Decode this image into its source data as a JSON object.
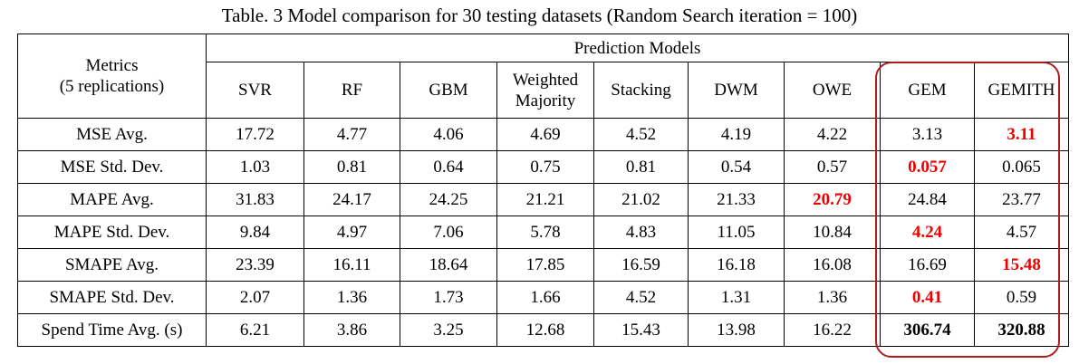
{
  "caption": "Table. 3 Model comparison for 30 testing datasets (Random Search iteration = 100)",
  "header": {
    "metrics_label_line1": "Metrics",
    "metrics_label_line2": "(5 replications)",
    "group_label": "Prediction Models",
    "models": [
      {
        "line1": "SVR",
        "line2": ""
      },
      {
        "line1": "RF",
        "line2": ""
      },
      {
        "line1": "GBM",
        "line2": ""
      },
      {
        "line1": "Weighted",
        "line2": "Majority"
      },
      {
        "line1": "Stacking",
        "line2": ""
      },
      {
        "line1": "DWM",
        "line2": ""
      },
      {
        "line1": "OWE",
        "line2": ""
      },
      {
        "line1": "GEM",
        "line2": ""
      },
      {
        "line1": "GEMITH",
        "line2": ""
      }
    ]
  },
  "rows": [
    {
      "metric": "MSE Avg.",
      "values": [
        "17.72",
        "4.77",
        "4.06",
        "4.69",
        "4.52",
        "4.19",
        "4.22",
        "3.13",
        "3.11"
      ],
      "best_index": 8,
      "bold_indices": []
    },
    {
      "metric": "MSE Std. Dev.",
      "values": [
        "1.03",
        "0.81",
        "0.64",
        "0.75",
        "0.81",
        "0.54",
        "0.57",
        "0.057",
        "0.065"
      ],
      "best_index": 7,
      "bold_indices": []
    },
    {
      "metric": "MAPE Avg.",
      "values": [
        "31.83",
        "24.17",
        "24.25",
        "21.21",
        "21.02",
        "21.33",
        "20.79",
        "24.84",
        "23.77"
      ],
      "best_index": 6,
      "bold_indices": []
    },
    {
      "metric": "MAPE Std. Dev.",
      "values": [
        "9.84",
        "4.97",
        "7.06",
        "5.78",
        "4.83",
        "11.05",
        "10.84",
        "4.24",
        "4.57"
      ],
      "best_index": 7,
      "bold_indices": []
    },
    {
      "metric": "SMAPE Avg.",
      "values": [
        "23.39",
        "16.11",
        "18.64",
        "17.85",
        "16.59",
        "16.18",
        "16.08",
        "16.69",
        "15.48"
      ],
      "best_index": 8,
      "bold_indices": []
    },
    {
      "metric": "SMAPE Std. Dev.",
      "values": [
        "2.07",
        "1.36",
        "1.73",
        "1.66",
        "4.52",
        "1.31",
        "1.36",
        "0.41",
        "0.59"
      ],
      "best_index": 7,
      "bold_indices": []
    },
    {
      "metric": "Spend Time Avg. (s)",
      "values": [
        "6.21",
        "3.86",
        "3.25",
        "12.68",
        "15.43",
        "13.98",
        "16.22",
        "306.74",
        "320.88"
      ],
      "best_index": -1,
      "bold_indices": [
        7,
        8
      ]
    }
  ],
  "colors": {
    "best_value": "#ee0000",
    "highlight_box": "#b01d1d"
  }
}
